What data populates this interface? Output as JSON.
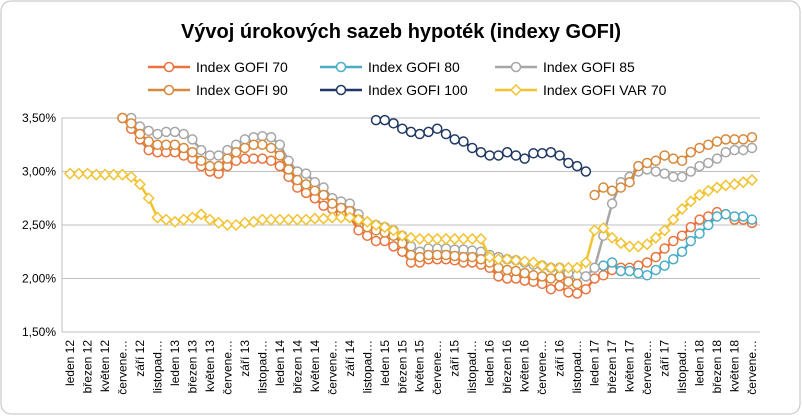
{
  "chart_data": {
    "type": "line",
    "title": "Vývoj úrokových sazeb hypoték (indexy GOFI)",
    "categories": [
      "leden 12",
      null,
      "březen 12",
      null,
      "květen 12",
      null,
      "červene…",
      null,
      "září 12",
      null,
      "listopad…",
      null,
      "leden 13",
      null,
      "březen 13",
      null,
      "květen 13",
      null,
      "červene…",
      null,
      "září 13",
      null,
      "listopad…",
      null,
      "leden 14",
      null,
      "březen 14",
      null,
      "květen 14",
      null,
      "červene…",
      null,
      "září 14",
      null,
      "listopad…",
      null,
      "leden 15",
      null,
      "březen 15",
      null,
      "květen 15",
      null,
      "červene…",
      null,
      "září 15",
      null,
      "listopad…",
      null,
      "leden 16",
      null,
      "březen 16",
      null,
      "květen 16",
      null,
      "červene…",
      null,
      "září 16",
      null,
      "listopad…",
      null,
      "leden 17",
      null,
      "březen 17",
      null,
      "květen 17",
      null,
      "červene…",
      null,
      "září 17",
      null,
      "listopad…",
      null,
      "leden 18",
      null,
      "březen 18",
      null,
      "květen 18",
      null,
      "červene…"
    ],
    "ylim": [
      1.5,
      3.5
    ],
    "yticks": [
      {
        "value": 1.5,
        "label": "1,50%"
      },
      {
        "value": 2,
        "label": "2,00%"
      },
      {
        "value": 2.5,
        "label": "2,50%"
      },
      {
        "value": 3,
        "label": "3,00%"
      },
      {
        "value": 3.5,
        "label": "3,50%"
      }
    ],
    "grid": true,
    "series": [
      {
        "name": "Index GOFI 70",
        "color": "#e8733d",
        "marker": "circle",
        "values": [
          null,
          null,
          null,
          null,
          null,
          null,
          3.5,
          3.4,
          3.3,
          3.2,
          3.18,
          3.18,
          3.18,
          3.15,
          3.12,
          3.05,
          3.0,
          2.98,
          3.05,
          3.1,
          3.12,
          3.12,
          3.12,
          3.1,
          3.05,
          2.95,
          2.85,
          2.8,
          2.75,
          2.68,
          2.65,
          2.6,
          2.58,
          2.45,
          2.4,
          2.35,
          2.35,
          2.3,
          2.25,
          2.15,
          2.15,
          2.18,
          2.18,
          2.18,
          2.17,
          2.15,
          2.15,
          2.13,
          2.1,
          2.02,
          2.0,
          2.0,
          1.98,
          1.97,
          1.95,
          1.9,
          1.93,
          1.87,
          1.86,
          1.9,
          2.0,
          2.03,
          2.08,
          2.1,
          2.1,
          2.12,
          2.15,
          2.2,
          2.28,
          2.35,
          2.4,
          2.48,
          2.55,
          2.58,
          2.62,
          2.6,
          2.55,
          2.55,
          2.52
        ]
      },
      {
        "name": "Index GOFI 80",
        "color": "#4bacc6",
        "marker": "circle",
        "values": [
          null,
          null,
          null,
          null,
          null,
          null,
          null,
          null,
          null,
          null,
          null,
          null,
          null,
          null,
          null,
          null,
          null,
          null,
          null,
          null,
          null,
          null,
          null,
          null,
          null,
          null,
          null,
          null,
          null,
          null,
          null,
          null,
          null,
          null,
          null,
          null,
          null,
          null,
          null,
          null,
          null,
          null,
          null,
          null,
          null,
          null,
          null,
          null,
          null,
          null,
          null,
          null,
          null,
          null,
          null,
          null,
          null,
          null,
          null,
          null,
          null,
          2.12,
          2.15,
          2.07,
          2.07,
          2.05,
          2.03,
          2.08,
          2.12,
          2.18,
          2.25,
          2.35,
          2.42,
          2.5,
          2.58,
          2.6,
          2.58,
          2.58,
          2.55
        ]
      },
      {
        "name": "Index GOFI 85",
        "color": "#a6a6a6",
        "marker": "circle",
        "values": [
          null,
          null,
          null,
          null,
          null,
          null,
          3.5,
          3.5,
          3.42,
          3.38,
          3.35,
          3.37,
          3.37,
          3.35,
          3.3,
          3.2,
          3.15,
          3.15,
          3.2,
          3.25,
          3.3,
          3.32,
          3.33,
          3.32,
          3.25,
          3.1,
          3.0,
          2.98,
          2.9,
          2.85,
          2.75,
          2.72,
          2.7,
          2.6,
          2.52,
          2.5,
          2.48,
          2.45,
          2.4,
          2.3,
          2.25,
          2.28,
          2.28,
          2.28,
          2.27,
          2.27,
          2.26,
          2.25,
          2.22,
          2.2,
          2.18,
          2.17,
          2.15,
          2.13,
          2.12,
          2.1,
          2.1,
          2.05,
          2.03,
          2.02,
          2.1,
          2.4,
          2.7,
          2.9,
          2.95,
          3.0,
          3.02,
          3.0,
          2.98,
          2.95,
          2.95,
          3.0,
          3.05,
          3.08,
          3.12,
          3.18,
          3.2,
          3.2,
          3.22
        ]
      },
      {
        "name": "Index GOFI 90",
        "color": "#d7883b",
        "marker": "circle",
        "values": [
          null,
          null,
          null,
          null,
          null,
          null,
          3.5,
          3.45,
          3.35,
          3.28,
          3.25,
          3.25,
          3.25,
          3.22,
          3.18,
          3.1,
          3.05,
          3.05,
          3.12,
          3.18,
          3.22,
          3.25,
          3.25,
          3.22,
          3.15,
          3.02,
          2.92,
          2.88,
          2.82,
          2.78,
          2.7,
          2.66,
          2.63,
          2.55,
          2.48,
          2.45,
          2.43,
          2.4,
          2.33,
          2.22,
          2.2,
          2.22,
          2.22,
          2.22,
          2.21,
          2.2,
          2.2,
          2.18,
          2.15,
          2.1,
          2.08,
          2.07,
          2.05,
          2.03,
          2.02,
          2.0,
          2.02,
          1.97,
          1.95,
          null,
          2.78,
          2.85,
          2.82,
          2.85,
          2.9,
          3.05,
          3.08,
          3.1,
          3.15,
          3.12,
          3.1,
          3.18,
          3.22,
          3.25,
          3.28,
          3.3,
          3.3,
          3.3,
          3.32
        ]
      },
      {
        "name": "Index GOFI 100",
        "color": "#1f3864",
        "marker": "circle",
        "values": [
          null,
          null,
          null,
          null,
          null,
          null,
          null,
          null,
          null,
          null,
          null,
          null,
          null,
          null,
          null,
          null,
          null,
          null,
          null,
          null,
          null,
          null,
          null,
          null,
          null,
          null,
          null,
          null,
          null,
          null,
          null,
          null,
          null,
          null,
          null,
          3.48,
          3.48,
          3.45,
          3.4,
          3.37,
          3.35,
          3.37,
          3.4,
          3.35,
          3.3,
          3.28,
          3.22,
          3.18,
          3.15,
          3.15,
          3.18,
          3.15,
          3.12,
          3.17,
          3.17,
          3.18,
          3.15,
          3.08,
          3.05,
          3.0,
          null,
          null,
          null,
          null,
          null,
          null,
          null,
          null,
          null,
          null,
          null,
          null,
          null,
          null,
          null,
          null,
          null,
          null,
          null
        ]
      },
      {
        "name": "Index GOFI VAR 70",
        "color": "#f2c331",
        "marker": "diamond",
        "values": [
          2.98,
          2.98,
          2.98,
          2.97,
          2.97,
          2.97,
          2.97,
          2.95,
          2.88,
          2.75,
          2.57,
          2.55,
          2.53,
          2.55,
          2.57,
          2.6,
          2.55,
          2.52,
          2.5,
          2.5,
          2.52,
          2.53,
          2.55,
          2.55,
          2.55,
          2.55,
          2.55,
          2.55,
          2.56,
          2.56,
          2.57,
          2.57,
          2.57,
          2.55,
          2.53,
          2.5,
          2.48,
          2.45,
          2.4,
          2.38,
          2.37,
          2.37,
          2.37,
          2.37,
          2.37,
          2.37,
          2.37,
          2.37,
          2.2,
          2.18,
          2.18,
          2.17,
          2.16,
          2.15,
          2.12,
          2.1,
          2.1,
          2.1,
          2.1,
          2.15,
          2.45,
          2.47,
          2.38,
          2.33,
          2.3,
          2.3,
          2.32,
          2.38,
          2.45,
          2.55,
          2.65,
          2.72,
          2.78,
          2.82,
          2.85,
          2.87,
          2.88,
          2.9,
          2.92
        ]
      }
    ]
  }
}
